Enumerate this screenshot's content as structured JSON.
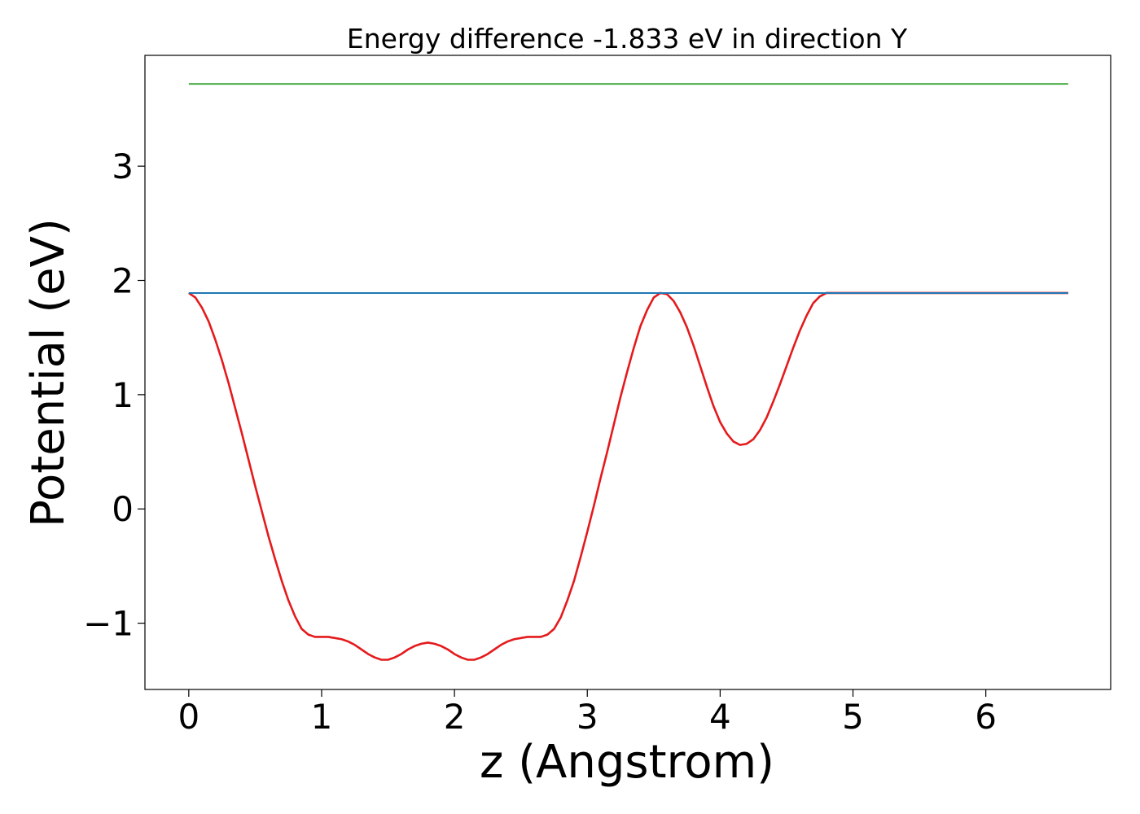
{
  "chart_data": {
    "type": "line",
    "title": "Energy difference -1.833 eV in direction Y",
    "xlabel": "z (Angstrom)",
    "ylabel": "Potential (eV)",
    "xlim": [
      -0.33,
      6.94
    ],
    "ylim": [
      -1.58,
      3.97
    ],
    "grid": false,
    "legend": "none",
    "xticks": [
      0,
      1,
      2,
      3,
      4,
      5,
      6
    ],
    "xtick_labels": [
      "0",
      "1",
      "2",
      "3",
      "4",
      "5",
      "6"
    ],
    "yticks": [
      -1,
      0,
      1,
      2,
      3
    ],
    "ytick_labels": [
      "−1",
      "0",
      "1",
      "2",
      "3"
    ],
    "series": [
      {
        "color": "#e41a1c",
        "x": [
          0.0,
          0.05,
          0.1,
          0.15,
          0.2,
          0.25,
          0.3,
          0.35,
          0.4,
          0.45,
          0.5,
          0.55,
          0.6,
          0.65,
          0.7,
          0.75,
          0.8,
          0.85,
          0.9,
          0.95,
          1.0,
          1.05,
          1.1,
          1.15,
          1.2,
          1.25,
          1.3,
          1.35,
          1.4,
          1.45,
          1.5,
          1.55,
          1.6,
          1.65,
          1.7,
          1.75,
          1.8,
          1.85,
          1.9,
          1.95,
          2.0,
          2.05,
          2.1,
          2.15,
          2.2,
          2.25,
          2.3,
          2.35,
          2.4,
          2.45,
          2.5,
          2.55,
          2.6,
          2.65,
          2.7,
          2.75,
          2.8,
          2.85,
          2.9,
          2.95,
          3.0,
          3.05,
          3.1,
          3.15,
          3.2,
          3.25,
          3.3,
          3.35,
          3.4,
          3.45,
          3.5,
          3.55,
          3.6,
          3.65,
          3.7,
          3.75,
          3.8,
          3.85,
          3.9,
          3.95,
          4.0,
          4.05,
          4.1,
          4.15,
          4.2,
          4.25,
          4.3,
          4.35,
          4.4,
          4.45,
          4.5,
          4.55,
          4.6,
          4.65,
          4.7,
          4.75,
          4.8,
          4.85,
          4.9,
          4.95,
          5.0,
          5.05,
          5.1,
          5.15,
          5.2,
          5.25,
          5.3,
          5.35,
          5.4,
          5.45,
          5.5,
          5.55,
          5.6,
          5.65,
          5.7,
          5.75,
          5.8,
          5.85,
          5.9,
          5.95,
          6.0,
          6.05,
          6.1,
          6.15,
          6.2,
          6.25,
          6.3,
          6.35,
          6.4,
          6.45,
          6.5,
          6.55,
          6.6,
          6.62
        ],
        "y": [
          1.89,
          1.85,
          1.76,
          1.64,
          1.48,
          1.3,
          1.1,
          0.88,
          0.66,
          0.43,
          0.2,
          -0.02,
          -0.24,
          -0.44,
          -0.63,
          -0.8,
          -0.94,
          -1.05,
          -1.1,
          -1.12,
          -1.12,
          -1.12,
          -1.13,
          -1.14,
          -1.16,
          -1.19,
          -1.23,
          -1.27,
          -1.3,
          -1.32,
          -1.32,
          -1.3,
          -1.27,
          -1.23,
          -1.2,
          -1.18,
          -1.17,
          -1.18,
          -1.2,
          -1.23,
          -1.27,
          -1.3,
          -1.32,
          -1.32,
          -1.3,
          -1.27,
          -1.23,
          -1.19,
          -1.16,
          -1.14,
          -1.13,
          -1.12,
          -1.12,
          -1.12,
          -1.1,
          -1.05,
          -0.95,
          -0.8,
          -0.63,
          -0.42,
          -0.2,
          0.03,
          0.27,
          0.5,
          0.74,
          0.98,
          1.2,
          1.41,
          1.6,
          1.74,
          1.85,
          1.89,
          1.88,
          1.82,
          1.72,
          1.59,
          1.43,
          1.25,
          1.07,
          0.9,
          0.76,
          0.66,
          0.59,
          0.56,
          0.57,
          0.61,
          0.69,
          0.8,
          0.94,
          1.09,
          1.25,
          1.41,
          1.56,
          1.69,
          1.8,
          1.86,
          1.89,
          1.89,
          1.89,
          1.89,
          1.89,
          1.89,
          1.89,
          1.89,
          1.89,
          1.89,
          1.89,
          1.89,
          1.89,
          1.89,
          1.89,
          1.89,
          1.89,
          1.89,
          1.89,
          1.89,
          1.89,
          1.89,
          1.89,
          1.89,
          1.89,
          1.89,
          1.89,
          1.89,
          1.89,
          1.89,
          1.89,
          1.89,
          1.89,
          1.89,
          1.89,
          1.89,
          1.89,
          1.89
        ]
      },
      {
        "color": "#1f77b4",
        "x": [
          0.0,
          6.62
        ],
        "y": [
          1.89,
          1.89
        ]
      },
      {
        "color": "#4daf4a",
        "x": [
          0.0,
          6.62
        ],
        "y": [
          3.72,
          3.72
        ]
      }
    ]
  }
}
